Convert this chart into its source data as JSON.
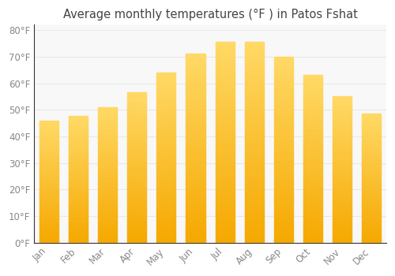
{
  "title": "Average monthly temperatures (°F ) in Patos Fshat",
  "months": [
    "Jan",
    "Feb",
    "Mar",
    "Apr",
    "May",
    "Jun",
    "Jul",
    "Aug",
    "Sep",
    "Oct",
    "Nov",
    "Dec"
  ],
  "values": [
    46,
    47.5,
    51,
    56.5,
    64,
    71,
    75.5,
    75.5,
    70,
    63,
    55,
    48.5
  ],
  "ylim": [
    0,
    82
  ],
  "yticks": [
    0,
    10,
    20,
    30,
    40,
    50,
    60,
    70,
    80
  ],
  "ytick_labels": [
    "0°F",
    "10°F",
    "20°F",
    "30°F",
    "40°F",
    "50°F",
    "60°F",
    "70°F",
    "80°F"
  ],
  "background_color": "#ffffff",
  "plot_bg_color": "#f8f8f8",
  "grid_color": "#e8e8e8",
  "title_fontsize": 10.5,
  "tick_fontsize": 8.5,
  "tick_color": "#888888",
  "bar_color_bottom": "#F5A800",
  "bar_color_top": "#FFD966",
  "bar_width": 0.65
}
